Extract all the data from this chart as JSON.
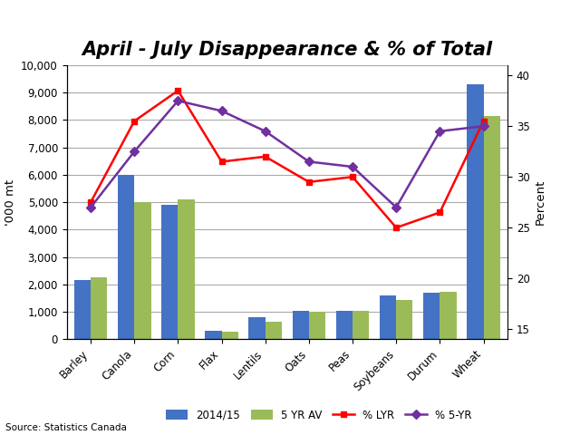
{
  "title": "April - July Disappearance & % of Total",
  "categories": [
    "Barley",
    "Canola",
    "Corn",
    "Flax",
    "Lentils",
    "Oats",
    "Peas",
    "Soybeans",
    "Durum",
    "Wheat"
  ],
  "bar_2014": [
    2150,
    6000,
    4900,
    300,
    800,
    1025,
    1050,
    1600,
    1700,
    9300
  ],
  "bar_5yr": [
    2275,
    5000,
    5100,
    270,
    650,
    1000,
    1050,
    1425,
    1725,
    8150
  ],
  "line_lyr": [
    27.5,
    35.5,
    38.5,
    31.5,
    32.0,
    29.5,
    30.0,
    25.0,
    26.5,
    35.5
  ],
  "line_5yr": [
    27.0,
    32.5,
    37.5,
    36.5,
    34.5,
    31.5,
    31.0,
    27.0,
    34.5,
    35.0
  ],
  "bar_color_2014": "#4472C4",
  "bar_color_5yr": "#9BBB59",
  "line_color_lyr": "#FF0000",
  "line_color_5yr": "#7030A0",
  "ylabel_left": "'000 mt",
  "ylabel_right": "Percent",
  "ylim_left": [
    0,
    10000
  ],
  "ylim_right": [
    14,
    41
  ],
  "yticks_left": [
    0,
    1000,
    2000,
    3000,
    4000,
    5000,
    6000,
    7000,
    8000,
    9000,
    10000
  ],
  "yticks_right": [
    15,
    20,
    25,
    30,
    35,
    40
  ],
  "source_text": "Source: Statistics Canada",
  "title_fontsize": 15,
  "legend_labels": [
    "2014/15",
    "5 YR AV",
    "% LYR",
    "% 5-YR"
  ],
  "background_color": "#FFFFFF",
  "grid_color": "#AAAAAA",
  "bar_width": 0.38
}
